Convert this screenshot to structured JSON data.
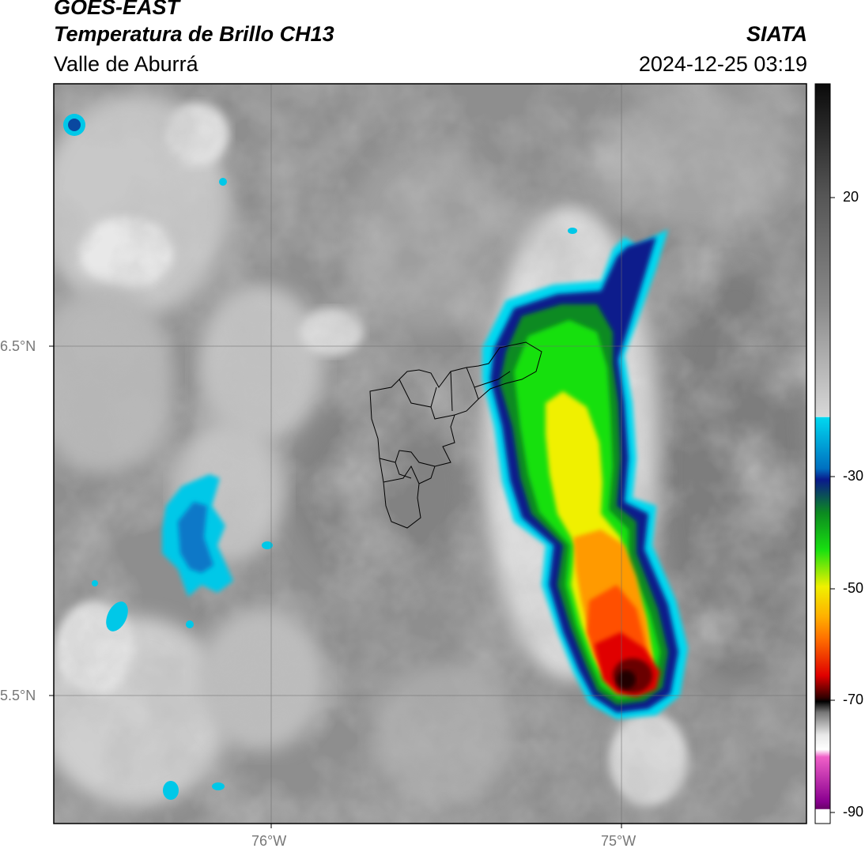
{
  "header": {
    "satellite": "GOES-EAST",
    "product": "Temperatura de Brillo CH13",
    "region": "Valle de Aburrá",
    "organization": "SIATA",
    "datetime": "2024-12-25 03:19"
  },
  "axes": {
    "lat_ticks": [
      "6.5°N",
      "5.5°N"
    ],
    "lon_ticks": [
      "76°W",
      "75°W"
    ]
  },
  "colorbar": {
    "tick_labels": [
      "20",
      "-30",
      "-50",
      "-70",
      "-90"
    ],
    "gradient_colors": [
      "#0a0a0a",
      "#8a8a8a",
      "#efefef",
      "#00d4ee",
      "#0a1a8c",
      "#0c8a20",
      "#18e010",
      "#f0f000",
      "#ff8000",
      "#e00000",
      "#200000",
      "#9a9a9a",
      "#ffffff",
      "#e060c0",
      "#6a006a"
    ]
  },
  "icons": {
    "municipal_boundaries": "municipality-outline",
    "storm": "convective-cloud-cell"
  }
}
